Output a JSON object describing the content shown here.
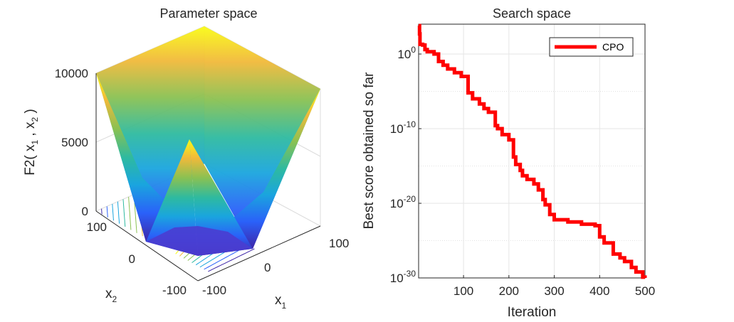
{
  "chart_data": [
    {
      "type": "surface3d",
      "title": "Parameter space",
      "function_name": "F2",
      "zlabel": {
        "prefix": "F2( x",
        "sub1": "1",
        "mid": " , x",
        "sub2": "2",
        "suffix": " )"
      },
      "xlabel": {
        "base": "x",
        "sub": "1"
      },
      "ylabel": {
        "base": "x",
        "sub": "2"
      },
      "xlim": [
        -100,
        100
      ],
      "ylim": [
        -100,
        100
      ],
      "zlim": [
        0,
        10000
      ],
      "x_ticks": [
        "-100",
        "0",
        "100"
      ],
      "y_ticks": [
        "-100",
        "0",
        "100"
      ],
      "z_ticks": [
        "0",
        "5000",
        "10000"
      ],
      "colormap": [
        "#3e26a8",
        "#2a61f9",
        "#1aa5de",
        "#2ebaa0",
        "#8ac152",
        "#f1b93a",
        "#f9fb15"
      ],
      "contour_color": "#4fb6c9"
    },
    {
      "type": "line",
      "title": "Search space",
      "xlabel": "Iteration",
      "ylabel": "Best score obtained so far",
      "xscale": "linear",
      "yscale": "log",
      "xlim": [
        1,
        500
      ],
      "ylim_exponent": [
        -30,
        4
      ],
      "x_ticks": [
        "100",
        "200",
        "300",
        "400",
        "500"
      ],
      "y_ticks": [
        {
          "base": "10",
          "exp": "0",
          "value_exp": 0
        },
        {
          "base": "10",
          "exp": "-10",
          "value_exp": -10
        },
        {
          "base": "10",
          "exp": "-20",
          "value_exp": -20
        },
        {
          "base": "10",
          "exp": "-30",
          "value_exp": -30
        }
      ],
      "grid": true,
      "legend": {
        "position": "top-right",
        "entries": [
          "CPO"
        ]
      },
      "series": [
        {
          "name": "CPO",
          "color": "#ff0000",
          "x": [
            1,
            3,
            4,
            10,
            15,
            20,
            35,
            45,
            55,
            65,
            80,
            95,
            110,
            120,
            135,
            145,
            155,
            170,
            175,
            185,
            200,
            210,
            215,
            225,
            230,
            240,
            255,
            265,
            275,
            280,
            290,
            300,
            330,
            345,
            360,
            380,
            390,
            400,
            410,
            430,
            445,
            455,
            470,
            480,
            495,
            500
          ],
          "y_log10": [
            3.8,
            2.7,
            1.3,
            1.2,
            0.6,
            0.3,
            0.0,
            -1.0,
            -1.5,
            -2.0,
            -2.5,
            -3.0,
            -5.2,
            -6.0,
            -6.7,
            -7.3,
            -7.8,
            -9.6,
            -10.0,
            -10.8,
            -11.5,
            -13.8,
            -14.8,
            -15.6,
            -16.3,
            -16.8,
            -17.4,
            -18.2,
            -19.5,
            -20.2,
            -21.5,
            -22.2,
            -22.5,
            -22.5,
            -22.8,
            -22.8,
            -23.0,
            -24.5,
            -25.3,
            -26.8,
            -27.3,
            -27.8,
            -28.6,
            -29.2,
            -29.9,
            -30.0
          ]
        }
      ]
    }
  ]
}
